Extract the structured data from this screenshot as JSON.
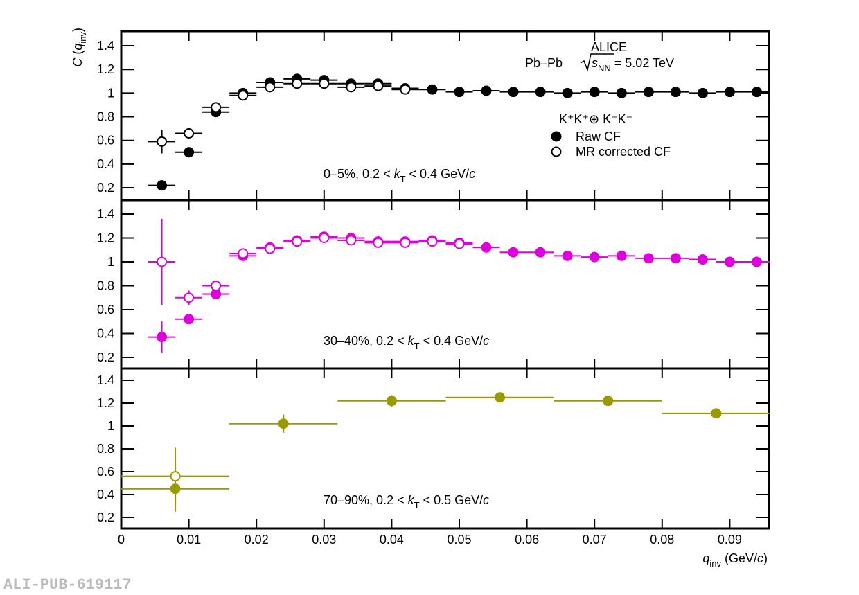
{
  "chart_data": [
    {
      "type": "scatter",
      "ylabel": [
        "C",
        " (",
        "q",
        "inv",
        ")"
      ],
      "header": {
        "experiment": "ALICE",
        "system": "Pb–Pb",
        "energy": [
          "s",
          "NN",
          " = 5.02 TeV"
        ]
      },
      "legend_title": "K⁺K⁺⊕ K⁻K⁻",
      "annotation": [
        "0–5%, 0.2 <  ",
        "k",
        "T",
        " < 0.4 GeV/",
        "c"
      ],
      "xlim": [
        0,
        0.0958
      ],
      "ylim": [
        0.095,
        1.523
      ],
      "yticks": [
        0.2,
        0.4,
        0.6,
        0.8,
        1,
        1.2,
        1.4
      ],
      "series": [
        {
          "name": "Raw CF",
          "color": "#000000",
          "marker": "filled",
          "xerr": 0.002,
          "x": [
            0.006,
            0.01,
            0.014,
            0.018,
            0.022,
            0.026,
            0.03,
            0.034,
            0.038,
            0.042,
            0.046,
            0.05,
            0.054,
            0.058,
            0.062,
            0.066,
            0.07,
            0.074,
            0.078,
            0.082,
            0.086,
            0.09,
            0.094
          ],
          "values": [
            0.22,
            0.5,
            0.84,
            1.0,
            1.09,
            1.12,
            1.11,
            1.08,
            1.08,
            1.04,
            1.03,
            1.01,
            1.02,
            1.01,
            1.01,
            1.0,
            1.01,
            1.0,
            1.01,
            1.01,
            1.0,
            1.01,
            1.01
          ],
          "errors": [
            null,
            null,
            null,
            null,
            null,
            null,
            null,
            null,
            null,
            null,
            null,
            null,
            null,
            null,
            null,
            null,
            null,
            null,
            null,
            null,
            null,
            null,
            null
          ]
        },
        {
          "name": "MR corrected CF",
          "color": "#000000",
          "marker": "open",
          "xerr": 0.002,
          "x": [
            0.006,
            0.01,
            0.014,
            0.018,
            0.022,
            0.026,
            0.03,
            0.034,
            0.038,
            0.042
          ],
          "values": [
            0.59,
            0.66,
            0.88,
            0.98,
            1.05,
            1.08,
            1.08,
            1.05,
            1.06,
            1.03
          ],
          "errors": [
            0.1,
            null,
            null,
            null,
            null,
            null,
            null,
            null,
            null,
            null
          ]
        }
      ]
    },
    {
      "type": "scatter",
      "annotation": [
        "30–40%, 0.2 <  ",
        "k",
        "T",
        " < 0.4 GeV/",
        "c"
      ],
      "xlim": [
        0,
        0.0958
      ],
      "ylim": [
        0.107,
        1.516
      ],
      "yticks": [
        0.2,
        0.4,
        0.6,
        0.8,
        1,
        1.2,
        1.4
      ],
      "series": [
        {
          "color": "#dd00dd",
          "marker": "filled",
          "xerr": 0.002,
          "x": [
            0.006,
            0.01,
            0.014,
            0.018,
            0.022,
            0.026,
            0.03,
            0.034,
            0.038,
            0.042,
            0.046,
            0.05,
            0.054,
            0.058,
            0.062,
            0.066,
            0.07,
            0.074,
            0.078,
            0.082,
            0.086,
            0.09,
            0.094
          ],
          "values": [
            0.37,
            0.52,
            0.73,
            1.05,
            1.12,
            1.18,
            1.21,
            1.2,
            1.17,
            1.17,
            1.18,
            1.16,
            1.12,
            1.08,
            1.08,
            1.05,
            1.04,
            1.05,
            1.03,
            1.03,
            1.02,
            1.0,
            1.0
          ],
          "errors": [
            0.13,
            0.03,
            null,
            null,
            null,
            null,
            null,
            null,
            null,
            null,
            null,
            null,
            null,
            null,
            null,
            null,
            null,
            null,
            null,
            null,
            null,
            null,
            null
          ]
        },
        {
          "color": "#dd00dd",
          "marker": "open",
          "xerr": 0.002,
          "x": [
            0.006,
            0.01,
            0.014,
            0.018,
            0.022,
            0.026,
            0.03,
            0.034,
            0.038,
            0.042,
            0.046,
            0.05
          ],
          "values": [
            1.0,
            0.7,
            0.8,
            1.07,
            1.11,
            1.17,
            1.2,
            1.18,
            1.16,
            1.16,
            1.17,
            1.15
          ],
          "errors": [
            0.36,
            0.06,
            null,
            null,
            null,
            null,
            null,
            null,
            null,
            null,
            null,
            null
          ]
        }
      ]
    },
    {
      "type": "scatter",
      "annotation": [
        "70–90%, 0.2 <  ",
        "k",
        "T",
        " < 0.5 GeV/",
        "c"
      ],
      "xlabel": [
        "q",
        "inv",
        " (GeV/",
        "c",
        ")"
      ],
      "xlim": [
        0,
        0.0958
      ],
      "ylim": [
        0.103,
        1.503
      ],
      "xticks": [
        0,
        0.01,
        0.02,
        0.03,
        0.04,
        0.05,
        0.06,
        0.07,
        0.08,
        0.09
      ],
      "yticks": [
        0.2,
        0.4,
        0.6,
        0.8,
        1,
        1.2,
        1.4
      ],
      "series": [
        {
          "color": "#999900",
          "marker": "filled",
          "xerr": 0.008,
          "x": [
            0.008,
            0.024,
            0.04,
            0.056,
            0.072,
            0.088
          ],
          "values": [
            0.45,
            1.02,
            1.22,
            1.25,
            1.22,
            1.11
          ],
          "errors": [
            0.2,
            0.08,
            0.05,
            null,
            null,
            null
          ]
        },
        {
          "color": "#999900",
          "marker": "open",
          "xerr": 0.008,
          "x": [
            0.008
          ],
          "values": [
            0.56
          ],
          "errors": [
            0.25
          ]
        }
      ]
    }
  ],
  "footer": "ALI-PUB-619117"
}
